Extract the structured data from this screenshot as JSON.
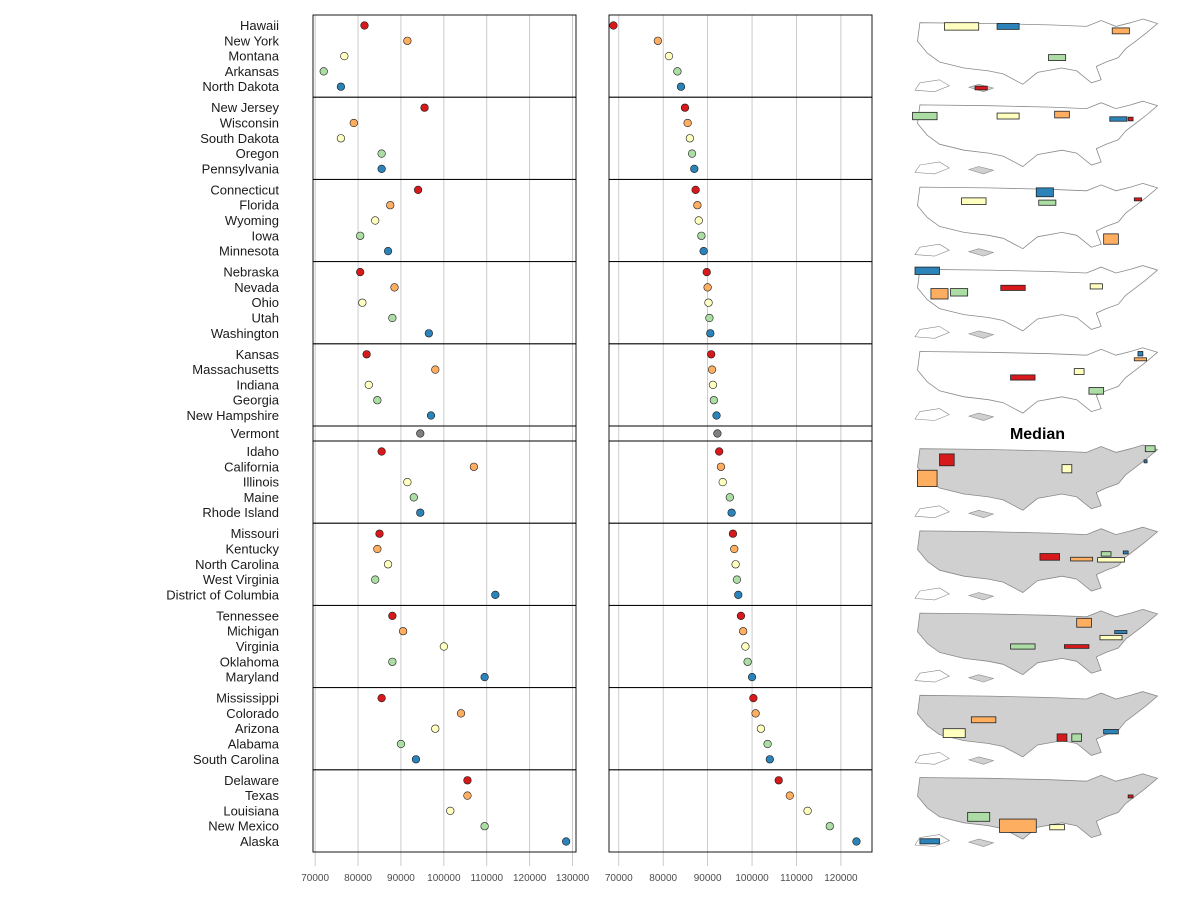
{
  "chart_data": {
    "type": "scatter",
    "description_free": true,
    "x_axis_1": {
      "ticks": [
        70000,
        80000,
        90000,
        100000,
        110000,
        120000,
        130000
      ],
      "range": [
        69500,
        130800
      ]
    },
    "x_axis_2": {
      "ticks": [
        70000,
        80000,
        90000,
        100000,
        110000,
        120000
      ],
      "range": [
        67800,
        127000
      ]
    },
    "median_label": "Median",
    "rank_colors": [
      "#d7191c",
      "#fdae61",
      "#ffffbf",
      "#abdda4",
      "#2b83ba"
    ],
    "median_color": "#7f7f7f",
    "groups": [
      {
        "states": [
          {
            "name": "Hawaii",
            "v1": 81500,
            "v2": 68800
          },
          {
            "name": "New York",
            "v1": 91500,
            "v2": 78800
          },
          {
            "name": "Montana",
            "v1": 76800,
            "v2": 81300
          },
          {
            "name": "Arkansas",
            "v1": 72000,
            "v2": 83200
          },
          {
            "name": "North Dakota",
            "v1": 76000,
            "v2": 84000
          }
        ]
      },
      {
        "states": [
          {
            "name": "New Jersey",
            "v1": 95500,
            "v2": 84900
          },
          {
            "name": "Wisconsin",
            "v1": 79000,
            "v2": 85500
          },
          {
            "name": "South Dakota",
            "v1": 76000,
            "v2": 86000
          },
          {
            "name": "Oregon",
            "v1": 85500,
            "v2": 86500
          },
          {
            "name": "Pennsylvania",
            "v1": 85500,
            "v2": 87000
          }
        ]
      },
      {
        "states": [
          {
            "name": "Connecticut",
            "v1": 94000,
            "v2": 87300
          },
          {
            "name": "Florida",
            "v1": 87500,
            "v2": 87700
          },
          {
            "name": "Wyoming",
            "v1": 84000,
            "v2": 88000
          },
          {
            "name": "Iowa",
            "v1": 80500,
            "v2": 88600
          },
          {
            "name": "Minnesota",
            "v1": 87000,
            "v2": 89100
          }
        ]
      },
      {
        "states": [
          {
            "name": "Nebraska",
            "v1": 80500,
            "v2": 89800
          },
          {
            "name": "Nevada",
            "v1": 88500,
            "v2": 90000
          },
          {
            "name": "Ohio",
            "v1": 81000,
            "v2": 90200
          },
          {
            "name": "Utah",
            "v1": 88000,
            "v2": 90400
          },
          {
            "name": "Washington",
            "v1": 96500,
            "v2": 90600
          }
        ]
      },
      {
        "states": [
          {
            "name": "Kansas",
            "v1": 82000,
            "v2": 90800
          },
          {
            "name": "Massachusetts",
            "v1": 98000,
            "v2": 91000
          },
          {
            "name": "Indiana",
            "v1": 82500,
            "v2": 91200
          },
          {
            "name": "Georgia",
            "v1": 84500,
            "v2": 91400
          },
          {
            "name": "New Hampshire",
            "v1": 97000,
            "v2": 92000
          }
        ]
      },
      {
        "median": true,
        "states": [
          {
            "name": "Vermont",
            "v1": 94500,
            "v2": 92200
          }
        ]
      },
      {
        "states": [
          {
            "name": "Idaho",
            "v1": 85500,
            "v2": 92600
          },
          {
            "name": "California",
            "v1": 107000,
            "v2": 93000
          },
          {
            "name": "Illinois",
            "v1": 91500,
            "v2": 93400
          },
          {
            "name": "Maine",
            "v1": 93000,
            "v2": 95000
          },
          {
            "name": "Rhode Island",
            "v1": 94500,
            "v2": 95400
          }
        ]
      },
      {
        "states": [
          {
            "name": "Missouri",
            "v1": 85000,
            "v2": 95700
          },
          {
            "name": "Kentucky",
            "v1": 84500,
            "v2": 96000
          },
          {
            "name": "North Carolina",
            "v1": 87000,
            "v2": 96300
          },
          {
            "name": "West Virginia",
            "v1": 84000,
            "v2": 96600
          },
          {
            "name": "District of Columbia",
            "v1": 112000,
            "v2": 96900
          }
        ]
      },
      {
        "states": [
          {
            "name": "Tennessee",
            "v1": 88000,
            "v2": 97500
          },
          {
            "name": "Michigan",
            "v1": 90500,
            "v2": 98000
          },
          {
            "name": "Virginia",
            "v1": 100000,
            "v2": 98500
          },
          {
            "name": "Oklahoma",
            "v1": 88000,
            "v2": 99000
          },
          {
            "name": "Maryland",
            "v1": 109500,
            "v2": 100000
          }
        ]
      },
      {
        "states": [
          {
            "name": "Mississippi",
            "v1": 85500,
            "v2": 100300
          },
          {
            "name": "Colorado",
            "v1": 104000,
            "v2": 100800
          },
          {
            "name": "Arizona",
            "v1": 98000,
            "v2": 102000
          },
          {
            "name": "Alabama",
            "v1": 90000,
            "v2": 103500
          },
          {
            "name": "South Carolina",
            "v1": 93500,
            "v2": 104000
          }
        ]
      },
      {
        "states": [
          {
            "name": "Delaware",
            "v1": 105500,
            "v2": 106000
          },
          {
            "name": "Texas",
            "v1": 105500,
            "v2": 108500
          },
          {
            "name": "Louisiana",
            "v1": 101500,
            "v2": 112500
          },
          {
            "name": "New Mexico",
            "v1": 109500,
            "v2": 117500
          },
          {
            "name": "Alaska",
            "v1": 128500,
            "v2": 123500
          }
        ]
      }
    ]
  }
}
